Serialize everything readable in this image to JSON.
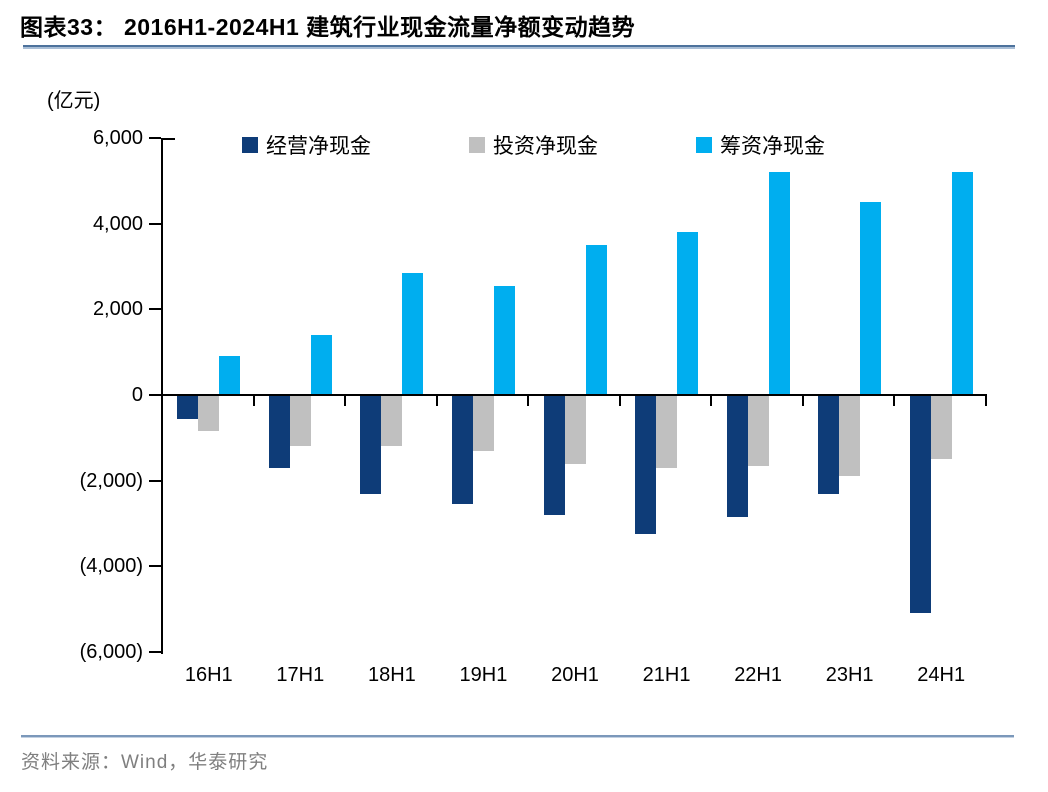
{
  "chart_data": {
    "type": "bar",
    "title": "图表33： 2016H1-2024H1 建筑行业现金流量净额变动趋势",
    "unit_label": "(亿元)",
    "categories": [
      "16H1",
      "17H1",
      "18H1",
      "19H1",
      "20H1",
      "21H1",
      "22H1",
      "23H1",
      "24H1"
    ],
    "series": [
      {
        "key": "operating",
        "name": "经营净现金",
        "color": "#0e3c78",
        "values": [
          -550,
          -1700,
          -2300,
          -2550,
          -2800,
          -3250,
          -2850,
          -2300,
          -5100
        ]
      },
      {
        "key": "investing",
        "name": "投资净现金",
        "color": "#c0c0c0",
        "values": [
          -850,
          -1200,
          -1200,
          -1300,
          -1600,
          -1700,
          -1650,
          -1900,
          -1500
        ]
      },
      {
        "key": "financing",
        "name": "筹资净现金",
        "color": "#00aeef",
        "values": [
          900,
          1400,
          2850,
          2550,
          3500,
          3800,
          5200,
          4500,
          5200
        ]
      }
    ],
    "ylim": [
      -6000,
      6000
    ],
    "yticks": [
      6000,
      4000,
      2000,
      0,
      -2000,
      -4000,
      -6000
    ],
    "ytick_labels": [
      "6,000",
      "4,000",
      "2,000",
      "0",
      "(2,000)",
      "(4,000)",
      "(6,000)"
    ],
    "legend_position": "top",
    "grid": false,
    "axis_color": "#000000"
  },
  "footer": {
    "source_text": "资料来源：Wind，华泰研究"
  }
}
